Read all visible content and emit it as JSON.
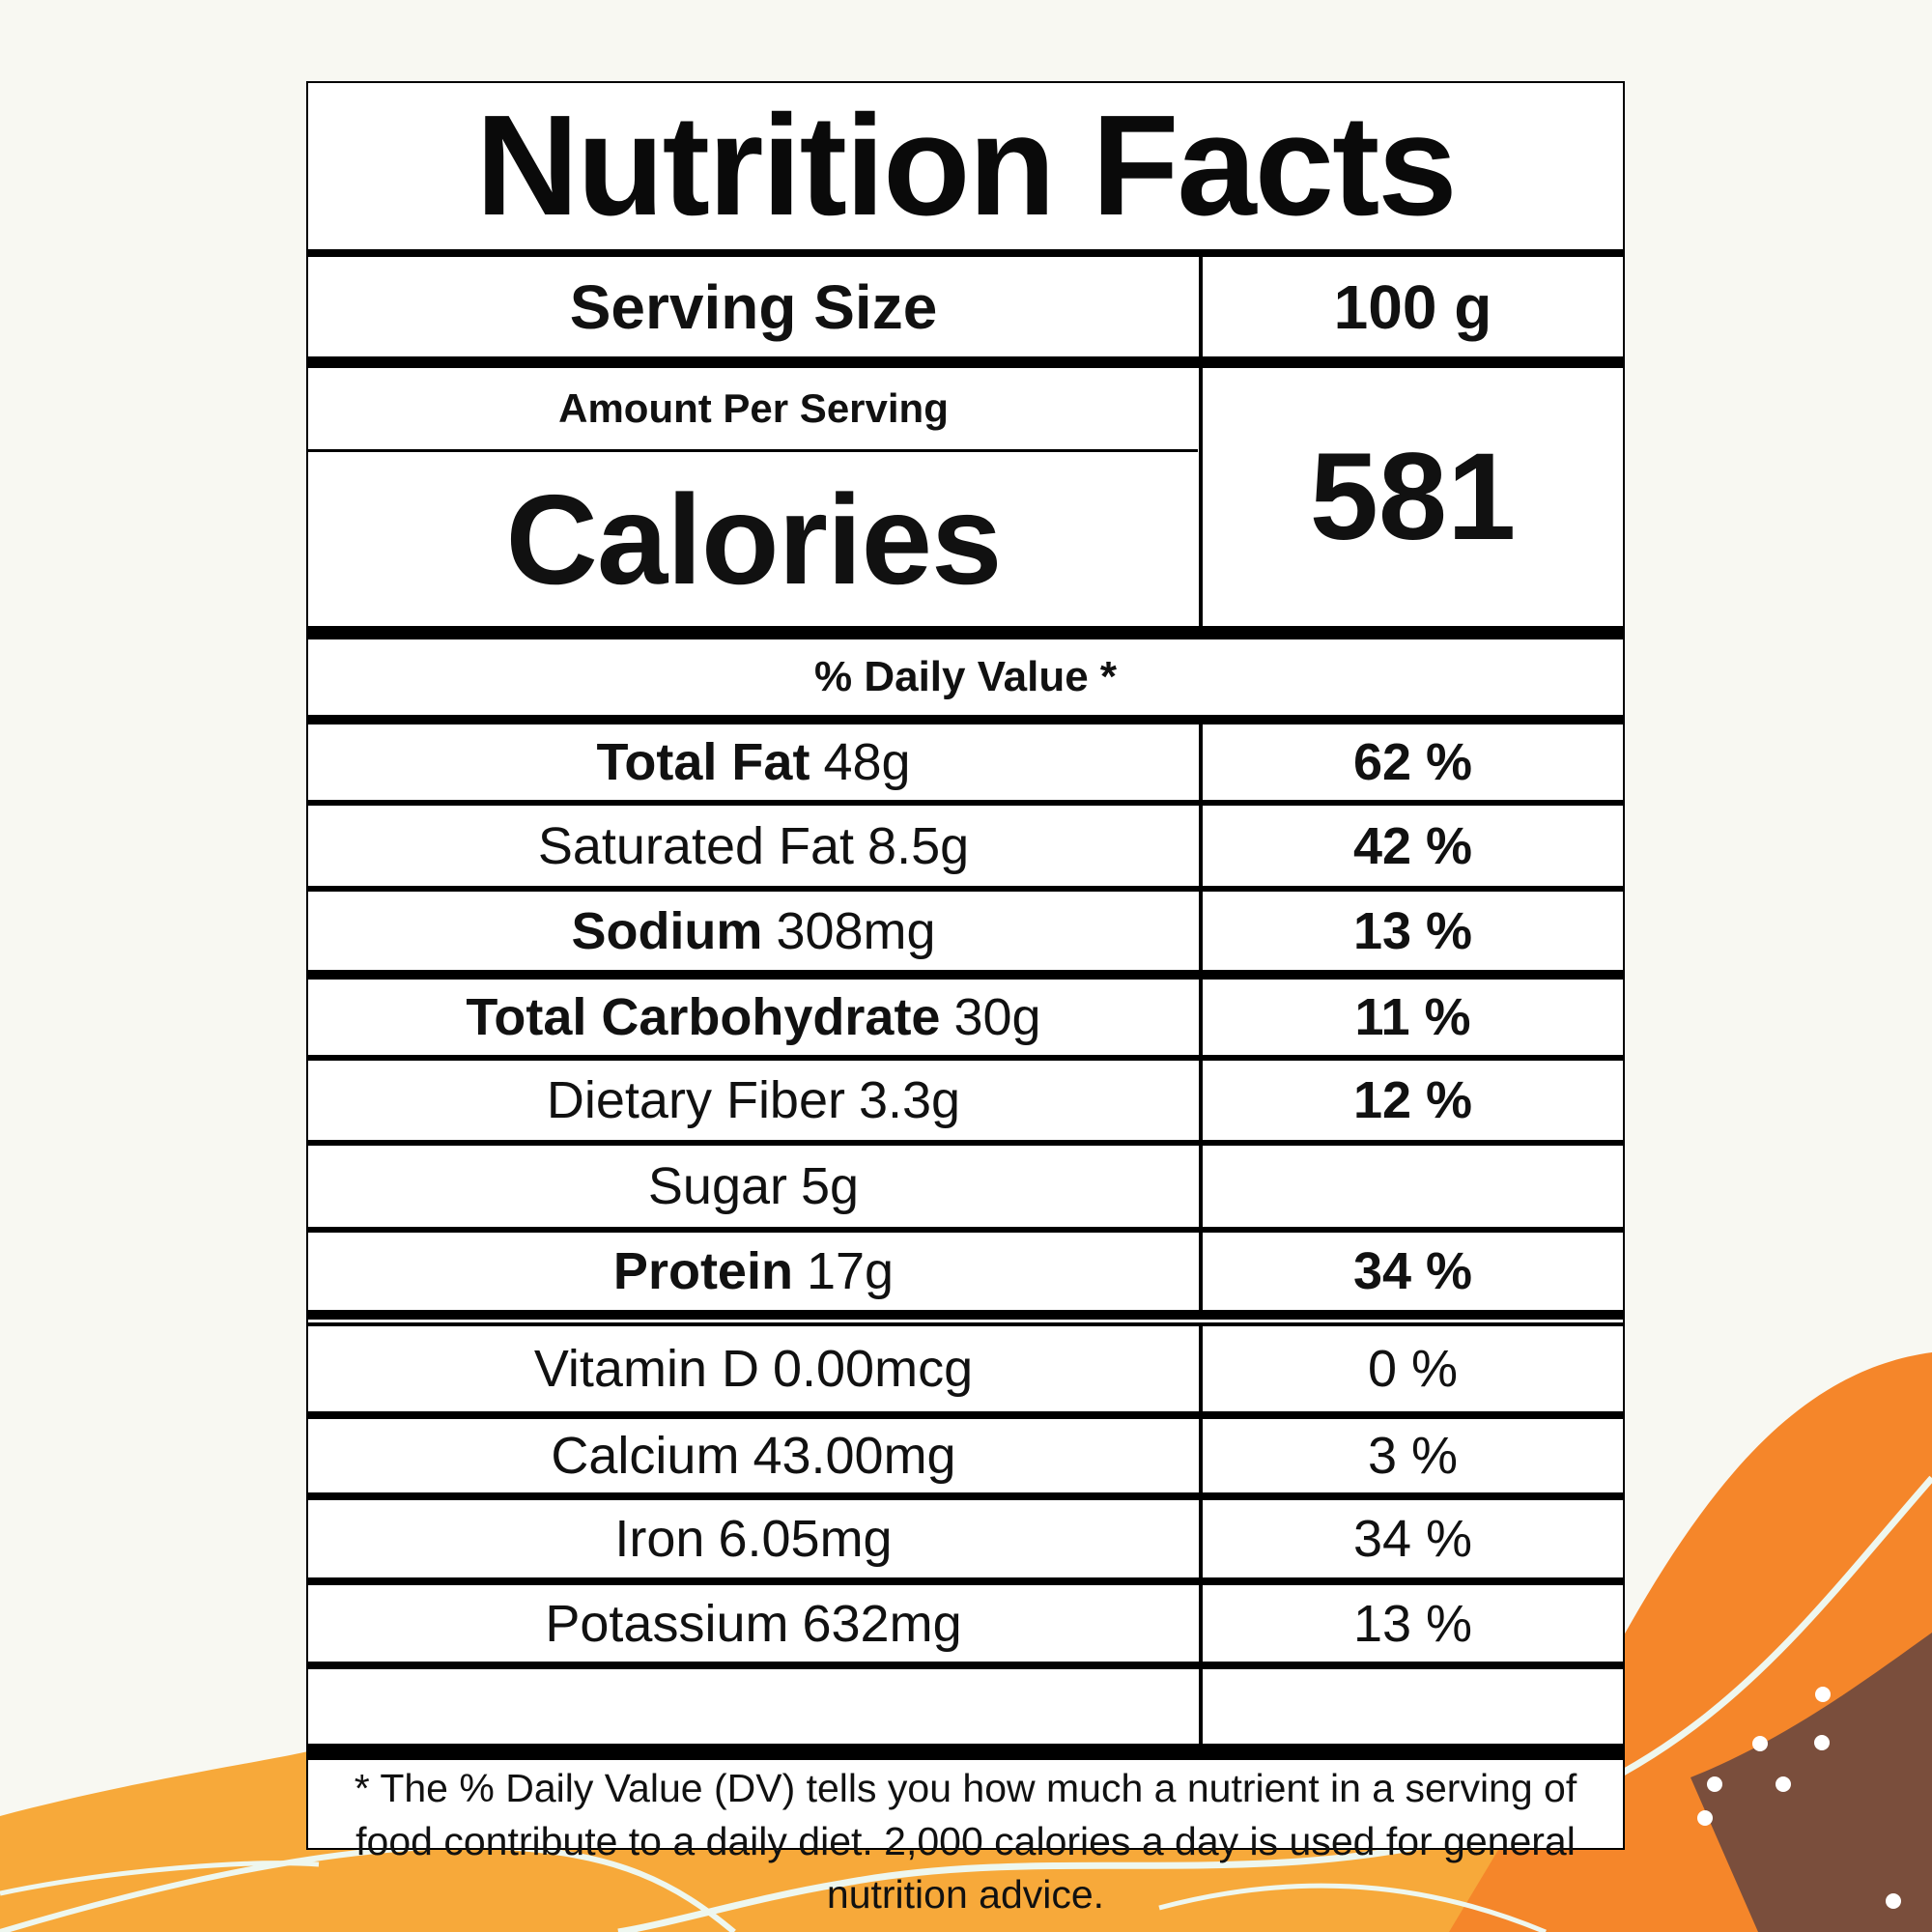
{
  "label": {
    "title": "Nutrition Facts",
    "serving_size": {
      "label": "Serving Size",
      "value": "100 g"
    },
    "amount_per_serving": "Amount Per Serving",
    "calories": {
      "label": "Calories",
      "value": "581"
    },
    "daily_value_header": "% Daily Value *",
    "nutrients": [
      {
        "name": "Total Fat",
        "amount": "48g",
        "dv": "62 %"
      },
      {
        "name": "Saturated Fat",
        "amount": "8.5g",
        "dv": "42 %"
      },
      {
        "name": "Sodium",
        "amount": "308mg",
        "dv": "13 %"
      },
      {
        "name": "Total Carbohydrate",
        "amount": "30g",
        "dv": "11 %"
      },
      {
        "name": "Dietary Fiber",
        "amount": "3.3g",
        "dv": "12 %"
      },
      {
        "name": "Sugar",
        "amount": "5g",
        "dv": ""
      },
      {
        "name": "Protein",
        "amount": "17g",
        "dv": "34 %"
      }
    ],
    "vitamins": [
      {
        "name": "Vitamin D",
        "amount": "0.00mcg",
        "dv": "0 %"
      },
      {
        "name": "Calcium",
        "amount": "43.00mg",
        "dv": "3 %"
      },
      {
        "name": "Iron",
        "amount": "6.05mg",
        "dv": "34 %"
      },
      {
        "name": "Potassium",
        "amount": "632mg",
        "dv": "13 %"
      }
    ],
    "footnote": "* The % Daily Value (DV) tells you how much a nutrient in a serving of food contribute to a daily diet. 2,000 calories a day is used for general nutrition advice."
  },
  "colors": {
    "background": "#f8f8f2",
    "wave_orange_light": "#f7a93a",
    "wave_orange_dark": "#f5862a",
    "wave_brown": "#7a4e3c",
    "wave_line": "#eef7ef"
  }
}
